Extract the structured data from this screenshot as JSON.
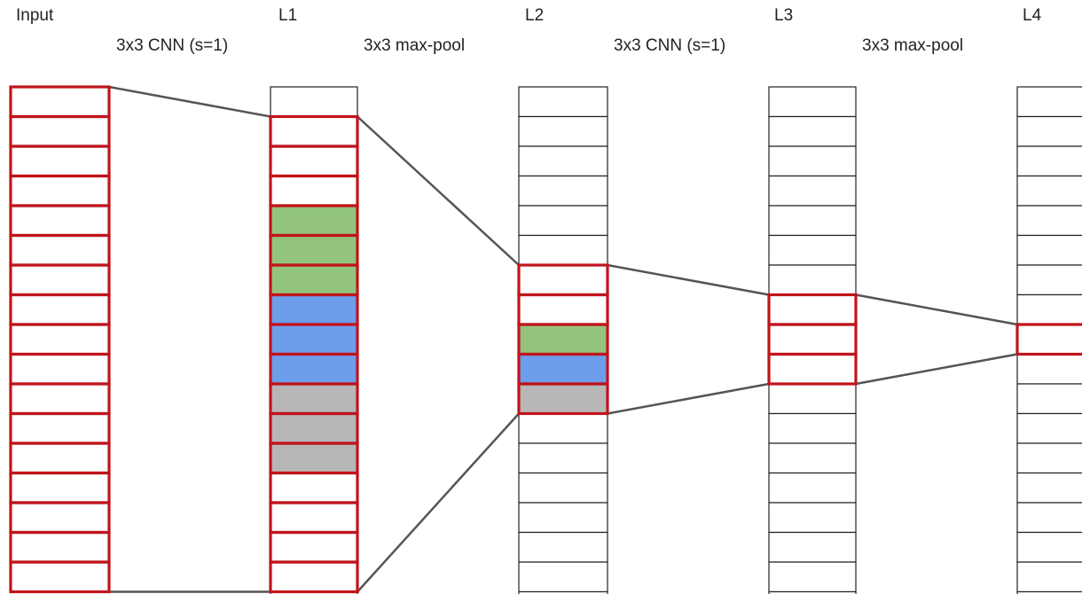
{
  "layers": [
    {
      "id": "input",
      "label": "Input",
      "cell_count": 17,
      "cells": [
        "white",
        "white",
        "white",
        "white",
        "white",
        "white",
        "white",
        "white",
        "white",
        "white",
        "white",
        "white",
        "white",
        "white",
        "white",
        "white",
        "white"
      ],
      "highlight_range": [
        0,
        16
      ]
    },
    {
      "id": "l1",
      "label": "L1",
      "cell_count": 18,
      "cells": [
        "white",
        "white",
        "white",
        "white",
        "green",
        "green",
        "green",
        "blue",
        "blue",
        "blue",
        "gray",
        "gray",
        "gray",
        "white",
        "white",
        "white",
        "white",
        "white"
      ],
      "highlight_range": [
        1,
        16
      ]
    },
    {
      "id": "l2",
      "label": "L2",
      "cell_count": 18,
      "cells": [
        "white",
        "white",
        "white",
        "white",
        "white",
        "white",
        "white",
        "white",
        "green",
        "blue",
        "gray",
        "white",
        "white",
        "white",
        "white",
        "white",
        "white",
        "white"
      ],
      "highlight_range": [
        6,
        10
      ]
    },
    {
      "id": "l3",
      "label": "L3",
      "cell_count": 18,
      "cells": [
        "white",
        "white",
        "white",
        "white",
        "white",
        "white",
        "white",
        "white",
        "white",
        "white",
        "white",
        "white",
        "white",
        "white",
        "white",
        "white",
        "white",
        "white"
      ],
      "highlight_range": [
        7,
        9
      ]
    },
    {
      "id": "l4",
      "label": "L4",
      "cell_count": 18,
      "cells": [
        "white",
        "white",
        "white",
        "white",
        "white",
        "white",
        "white",
        "white",
        "white",
        "white",
        "white",
        "white",
        "white",
        "white",
        "white",
        "white",
        "white",
        "white"
      ],
      "highlight_range": [
        8,
        8
      ]
    }
  ],
  "operations": [
    {
      "label": "3x3 CNN (s=1)",
      "from": "input",
      "to": "l1"
    },
    {
      "label": "3x3 max-pool",
      "from": "l1",
      "to": "l2"
    },
    {
      "label": "3x3 CNN (s=1)",
      "from": "l2",
      "to": "l3"
    },
    {
      "label": "3x3 max-pool",
      "from": "l3",
      "to": "l4"
    }
  ],
  "colors": {
    "cell_fill": "#ffffff",
    "cell_border": "#222222",
    "highlight_border": "#c0141c",
    "green": "#93c47d",
    "blue": "#6d9eeb",
    "gray": "#b7b7b7",
    "connector": "#555555",
    "text": "#222222"
  }
}
